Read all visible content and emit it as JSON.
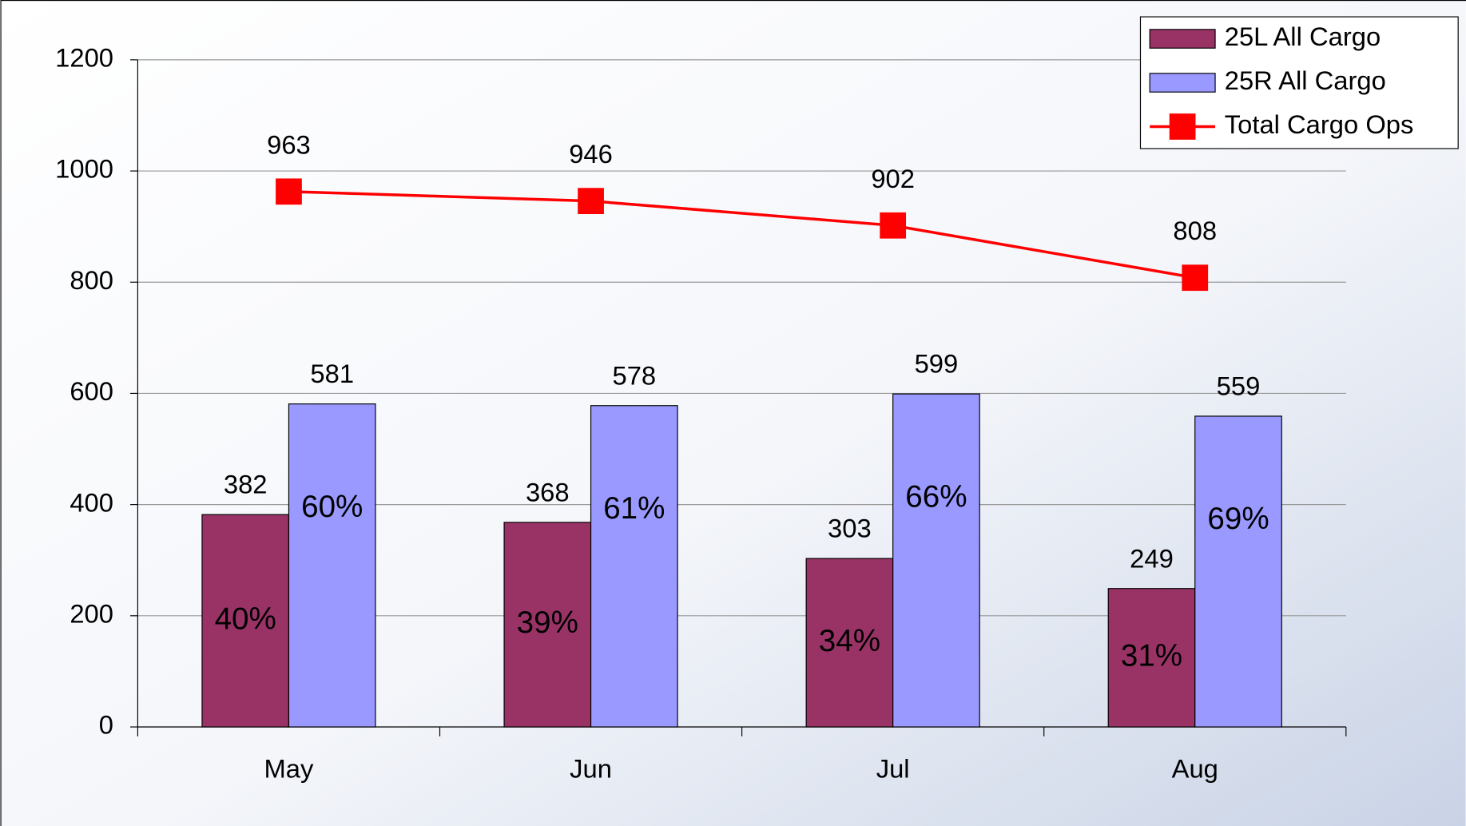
{
  "chart_data": {
    "type": "bar",
    "categories": [
      "May",
      "Jun",
      "Jul",
      "Aug"
    ],
    "series": [
      {
        "name": "25L All Cargo",
        "type": "bar",
        "color": "#993366",
        "values": [
          382,
          368,
          303,
          249
        ],
        "percent_labels": [
          "40%",
          "39%",
          "34%",
          "31%"
        ]
      },
      {
        "name": "25R All Cargo",
        "type": "bar",
        "color": "#9999ff",
        "values": [
          581,
          578,
          599,
          559
        ],
        "percent_labels": [
          "60%",
          "61%",
          "66%",
          "69%"
        ]
      },
      {
        "name": "Total Cargo Ops",
        "type": "line",
        "color": "#ff0000",
        "values": [
          963,
          946,
          902,
          808
        ]
      }
    ],
    "ylim": [
      0,
      1200
    ],
    "yticks": [
      0,
      200,
      400,
      600,
      800,
      1000,
      1200
    ],
    "grid": true,
    "legend": "top-right"
  }
}
